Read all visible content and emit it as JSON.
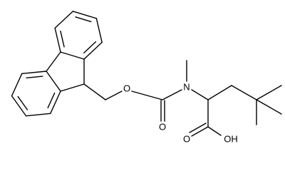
{
  "atoms": {
    "ether_oxygen": "O",
    "carbonyl_oxygen": "O",
    "nitrogen": "N",
    "acid_oxygen": "O",
    "hydroxyl": "OH"
  }
}
